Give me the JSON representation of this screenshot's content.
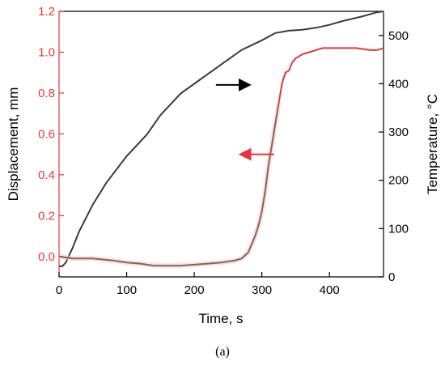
{
  "chart_data": {
    "type": "line",
    "title": "",
    "xlabel": "Time, s",
    "ylabel_left": "Displacement, mm",
    "ylabel_right_text": "Temperature, ",
    "ylabel_right_unit": "°C",
    "xlim": [
      0,
      480
    ],
    "ylim_left": [
      -0.1,
      1.2
    ],
    "ylim_right": [
      0,
      550
    ],
    "x_ticks": [
      0,
      100,
      200,
      300,
      400
    ],
    "y_left_ticks": [
      "0.0",
      "0.2",
      "0.4",
      "0.6",
      "0.8",
      "1.0",
      "1.2"
    ],
    "y_right_ticks": [
      "0",
      "100",
      "200",
      "300",
      "400",
      "500"
    ],
    "grid": false,
    "colors": {
      "displacement": "#e8343a",
      "displacement_low": "#8a6a3a",
      "temperature": "#3c3c3c",
      "left_axis": "#e8343a",
      "right_axis": "#000000"
    },
    "series": [
      {
        "axis": "right",
        "x": [
          0,
          5,
          10,
          20,
          30,
          50,
          70,
          100,
          130,
          150,
          180,
          210,
          240,
          270,
          300,
          320,
          340,
          360,
          380,
          400,
          420,
          450,
          470,
          480
        ],
        "y": [
          22,
          22,
          30,
          60,
          95,
          150,
          195,
          250,
          295,
          335,
          380,
          410,
          440,
          470,
          490,
          505,
          510,
          512,
          516,
          522,
          530,
          540,
          548,
          550
        ]
      },
      {
        "axis": "left",
        "x": [
          0,
          20,
          50,
          80,
          100,
          120,
          130,
          140,
          160,
          180,
          200,
          220,
          240,
          260,
          270,
          280,
          285,
          290,
          295,
          300,
          305,
          310,
          315,
          320,
          325,
          330,
          335,
          340,
          345,
          350,
          360,
          370,
          380,
          390,
          400,
          420,
          440,
          460,
          470,
          480
        ],
        "y": [
          0.0,
          -0.01,
          -0.01,
          -0.02,
          -0.03,
          -0.035,
          -0.04,
          -0.045,
          -0.045,
          -0.045,
          -0.04,
          -0.035,
          -0.03,
          -0.02,
          -0.01,
          0.02,
          0.06,
          0.1,
          0.15,
          0.22,
          0.32,
          0.45,
          0.55,
          0.65,
          0.75,
          0.85,
          0.9,
          0.91,
          0.95,
          0.97,
          0.99,
          1.0,
          1.01,
          1.02,
          1.02,
          1.02,
          1.02,
          1.01,
          1.01,
          1.02
        ]
      }
    ],
    "annotations": [
      {
        "type": "arrow",
        "direction": "right",
        "color": "#000000",
        "points_to": "right-axis"
      },
      {
        "type": "arrow",
        "direction": "left",
        "color": "#e8343a",
        "points_to": "left-axis"
      }
    ]
  },
  "caption": "(a)"
}
